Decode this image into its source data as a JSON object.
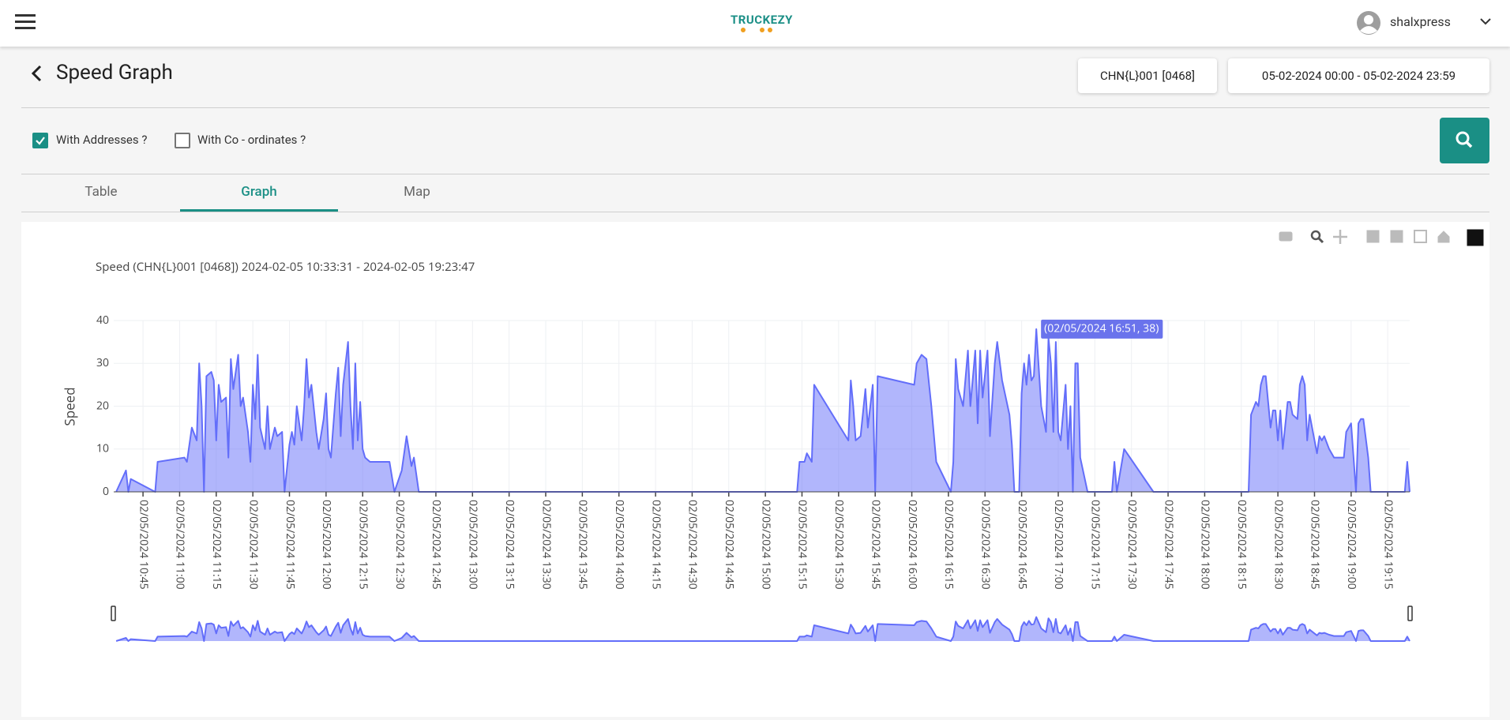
{
  "header": {
    "logo": "TRUCKEZY",
    "username": "shalxpress"
  },
  "page": {
    "title": "Speed Graph",
    "vehicle": "CHN{L}001 [0468]",
    "date_range": "05-02-2024 00:00 - 05-02-2024 23:59",
    "options": [
      {
        "label": "With Addresses ?",
        "checked": true
      },
      {
        "label": "With Co - ordinates ?",
        "checked": false
      }
    ],
    "tabs": [
      "Table",
      "Graph",
      "Map"
    ],
    "active_tab": 1
  },
  "chart_data": {
    "type": "area",
    "title": "Speed (CHN{L}001 [0468]) 2024-02-05 10:33:31 - 2024-02-05 19:23:47",
    "y_label": "Speed",
    "annotation": "(02/05/2024 16:51, 38)",
    "color": "#636efa",
    "grid": true,
    "range_slider": true,
    "xlim": [
      "02/05/2024 10:33",
      "02/05/2024 19:24"
    ],
    "ylim": [
      0,
      40
    ],
    "yticks": [
      0,
      10,
      20,
      30,
      40
    ],
    "xticks": [
      "02/05/2024 10:45",
      "02/05/2024 11:00",
      "02/05/2024 11:15",
      "02/05/2024 11:30",
      "02/05/2024 11:45",
      "02/05/2024 12:00",
      "02/05/2024 12:15",
      "02/05/2024 12:30",
      "02/05/2024 12:45",
      "02/05/2024 13:00",
      "02/05/2024 13:15",
      "02/05/2024 13:30",
      "02/05/2024 13:45",
      "02/05/2024 14:00",
      "02/05/2024 14:15",
      "02/05/2024 14:30",
      "02/05/2024 14:45",
      "02/05/2024 15:00",
      "02/05/2024 15:15",
      "02/05/2024 15:30",
      "02/05/2024 15:45",
      "02/05/2024 16:00",
      "02/05/2024 16:15",
      "02/05/2024 16:30",
      "02/05/2024 16:45",
      "02/05/2024 17:00",
      "02/05/2024 17:15",
      "02/05/2024 17:30",
      "02/05/2024 17:45",
      "02/05/2024 18:00",
      "02/05/2024 18:15",
      "02/05/2024 18:30",
      "02/05/2024 18:45",
      "02/05/2024 19:00",
      "02/05/2024 19:15"
    ],
    "x": [
      "02/05/2024 10:34",
      "02/05/2024 10:38",
      "02/05/2024 10:39",
      "02/05/2024 10:40",
      "02/05/2024 10:50",
      "02/05/2024 10:51",
      "02/05/2024 11:02",
      "02/05/2024 11:03",
      "02/05/2024 11:05",
      "02/05/2024 11:07",
      "02/05/2024 11:08",
      "02/05/2024 11:09",
      "02/05/2024 11:10",
      "02/05/2024 11:11",
      "02/05/2024 11:13",
      "02/05/2024 11:14",
      "02/05/2024 11:15",
      "02/05/2024 11:16",
      "02/05/2024 11:17",
      "02/05/2024 11:19",
      "02/05/2024 11:20",
      "02/05/2024 11:21",
      "02/05/2024 11:22",
      "02/05/2024 11:24",
      "02/05/2024 11:25",
      "02/05/2024 11:26",
      "02/05/2024 11:28",
      "02/05/2024 11:29",
      "02/05/2024 11:30",
      "02/05/2024 11:31",
      "02/05/2024 11:32",
      "02/05/2024 11:33",
      "02/05/2024 11:35",
      "02/05/2024 11:36",
      "02/05/2024 11:37",
      "02/05/2024 11:39",
      "02/05/2024 11:40",
      "02/05/2024 11:42",
      "02/05/2024 11:43",
      "02/05/2024 11:45",
      "02/05/2024 11:46",
      "02/05/2024 11:47",
      "02/05/2024 11:48",
      "02/05/2024 11:50",
      "02/05/2024 11:51",
      "02/05/2024 11:52",
      "02/05/2024 11:53",
      "02/05/2024 11:54",
      "02/05/2024 11:56",
      "02/05/2024 11:57",
      "02/05/2024 11:59",
      "02/05/2024 12:00",
      "02/05/2024 12:01",
      "02/05/2024 12:02",
      "02/05/2024 12:04",
      "02/05/2024 12:05",
      "02/05/2024 12:06",
      "02/05/2024 12:07",
      "02/05/2024 12:09",
      "02/05/2024 12:10",
      "02/05/2024 12:11",
      "02/05/2024 12:12",
      "02/05/2024 12:13",
      "02/05/2024 12:14",
      "02/05/2024 12:15",
      "02/05/2024 12:16",
      "02/05/2024 12:18",
      "02/05/2024 12:26",
      "02/05/2024 12:28",
      "02/05/2024 12:31",
      "02/05/2024 12:33",
      "02/05/2024 12:35",
      "02/05/2024 12:36",
      "02/05/2024 12:38",
      "02/05/2024 15:13",
      "02/05/2024 15:14",
      "02/05/2024 15:16",
      "02/05/2024 15:17",
      "02/05/2024 15:19",
      "02/05/2024 15:20",
      "02/05/2024 15:34",
      "02/05/2024 15:35",
      "02/05/2024 15:36",
      "02/05/2024 15:37",
      "02/05/2024 15:39",
      "02/05/2024 15:41",
      "02/05/2024 15:42",
      "02/05/2024 15:44",
      "02/05/2024 15:45",
      "02/05/2024 15:46",
      "02/05/2024 16:01",
      "02/05/2024 16:02",
      "02/05/2024 16:04",
      "02/05/2024 16:06",
      "02/05/2024 16:08",
      "02/05/2024 16:10",
      "02/05/2024 16:16",
      "02/05/2024 16:17",
      "02/05/2024 16:18",
      "02/05/2024 16:19",
      "02/05/2024 16:21",
      "02/05/2024 16:23",
      "02/05/2024 16:24",
      "02/05/2024 16:26",
      "02/05/2024 16:27",
      "02/05/2024 16:28",
      "02/05/2024 16:29",
      "02/05/2024 16:31",
      "02/05/2024 16:32",
      "02/05/2024 16:34",
      "02/05/2024 16:35",
      "02/05/2024 16:37",
      "02/05/2024 16:40",
      "02/05/2024 16:41",
      "02/05/2024 16:42",
      "02/05/2024 16:44",
      "02/05/2024 16:45",
      "02/05/2024 16:46",
      "02/05/2024 16:47",
      "02/05/2024 16:48",
      "02/05/2024 16:49",
      "02/05/2024 16:50",
      "02/05/2024 16:51",
      "02/05/2024 16:53",
      "02/05/2024 16:55",
      "02/05/2024 16:56",
      "02/05/2024 16:57",
      "02/05/2024 16:58",
      "02/05/2024 16:59",
      "02/05/2024 17:00",
      "02/05/2024 17:01",
      "02/05/2024 17:03",
      "02/05/2024 17:04",
      "02/05/2024 17:05",
      "02/05/2024 17:06",
      "02/05/2024 17:07",
      "02/05/2024 17:08",
      "02/05/2024 17:09",
      "02/05/2024 17:12",
      "02/05/2024 17:22",
      "02/05/2024 17:23",
      "02/05/2024 17:24",
      "02/05/2024 17:27",
      "02/05/2024 17:39",
      "02/05/2024 18:18",
      "02/05/2024 18:19",
      "02/05/2024 18:21",
      "02/05/2024 18:22",
      "02/05/2024 18:23",
      "02/05/2024 18:24",
      "02/05/2024 18:25",
      "02/05/2024 18:27",
      "02/05/2024 18:28",
      "02/05/2024 18:29",
      "02/05/2024 18:30",
      "02/05/2024 18:31",
      "02/05/2024 18:32",
      "02/05/2024 18:34",
      "02/05/2024 18:35",
      "02/05/2024 18:36",
      "02/05/2024 18:38",
      "02/05/2024 18:39",
      "02/05/2024 18:40",
      "02/05/2024 18:41",
      "02/05/2024 18:42",
      "02/05/2024 18:43",
      "02/05/2024 18:45",
      "02/05/2024 18:46",
      "02/05/2024 18:47",
      "02/05/2024 18:48",
      "02/05/2024 18:49",
      "02/05/2024 18:51",
      "02/05/2024 18:53",
      "02/05/2024 18:57",
      "02/05/2024 18:58",
      "02/05/2024 19:00",
      "02/05/2024 19:01",
      "02/05/2024 19:02",
      "02/05/2024 19:03",
      "02/05/2024 19:04",
      "02/05/2024 19:05",
      "02/05/2024 19:07",
      "02/05/2024 19:08",
      "02/05/2024 19:22",
      "02/05/2024 19:23",
      "02/05/2024 19:24"
    ],
    "values": [
      0,
      5,
      0,
      3,
      0,
      7,
      8,
      7,
      15,
      12,
      30,
      20,
      0,
      27,
      28,
      26,
      12,
      25,
      21,
      22,
      8,
      31,
      24,
      32,
      20,
      22,
      14,
      7,
      25,
      17,
      32,
      15,
      10,
      20,
      10,
      15,
      13,
      14,
      0,
      11,
      14,
      11,
      20,
      12,
      20,
      31,
      22,
      25,
      14,
      10,
      17,
      23,
      10,
      8,
      23,
      29,
      13,
      25,
      35,
      20,
      10,
      30,
      12,
      21,
      10,
      8,
      7,
      7,
      0,
      5,
      13,
      6,
      8,
      0,
      0,
      7,
      7,
      9,
      7,
      25,
      12,
      26,
      20,
      12,
      13,
      24,
      15,
      25,
      0,
      27,
      25,
      30,
      32,
      31,
      20,
      7,
      0,
      7,
      31,
      24,
      20,
      33,
      20,
      33,
      16,
      33,
      22,
      33,
      13,
      30,
      35,
      26,
      18,
      11,
      0,
      0,
      23,
      30,
      25,
      32,
      26,
      27,
      38,
      20,
      14,
      36,
      30,
      14,
      35,
      14,
      12,
      25,
      10,
      20,
      0,
      30,
      30,
      8,
      0,
      0,
      7,
      0,
      10,
      0,
      0,
      18,
      21,
      20,
      25,
      27,
      27,
      15,
      19,
      19,
      12,
      19,
      10,
      21,
      21,
      18,
      17,
      25,
      27,
      25,
      12,
      18,
      12,
      9,
      13,
      12,
      13,
      10,
      8,
      8,
      14,
      16,
      8,
      0,
      16,
      17,
      17,
      8,
      0,
      0,
      7,
      0
    ]
  }
}
